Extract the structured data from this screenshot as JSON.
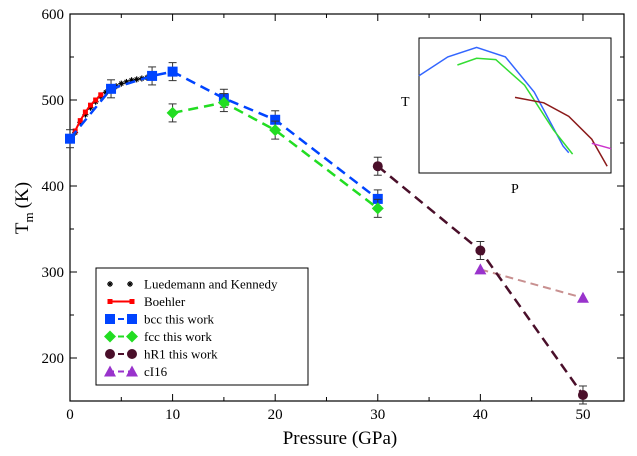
{
  "chart_data": {
    "type": "line",
    "xlabel": "Pressure (GPa)",
    "ylabel_main": "T",
    "ylabel_sub": "m",
    "ylabel_unit": "(K)",
    "xlim": [
      0,
      54
    ],
    "ylim": [
      150,
      600
    ],
    "xticks": [
      0,
      10,
      20,
      30,
      40,
      50
    ],
    "yticks": [
      200,
      300,
      400,
      500,
      600
    ],
    "grid": false,
    "legend_position": "bottom-left",
    "series": [
      {
        "name": "Luedemann and Kennedy",
        "color": "#000000",
        "marker": "star",
        "x": [
          0.5,
          1,
          1.5,
          2,
          2.5,
          3,
          3.5,
          4,
          4.5,
          5,
          5.5,
          6,
          6.5,
          7,
          7.5,
          8
        ],
        "y": [
          462,
          474,
          483,
          491,
          498,
          504,
          509,
          513,
          516,
          519,
          521,
          523,
          524,
          525,
          526,
          526
        ]
      },
      {
        "name": "Boehler",
        "color": "#ff0000",
        "marker": "square",
        "x": [
          0.5,
          1,
          1.5,
          2,
          2.5,
          3
        ],
        "y": [
          464,
          476,
          486,
          494,
          500,
          506
        ]
      },
      {
        "name": "bcc this work",
        "color": "#0044ff",
        "marker": "square",
        "x": [
          0,
          4,
          8,
          10,
          15,
          20,
          30
        ],
        "y": [
          455,
          513,
          528,
          533,
          502,
          477,
          385
        ]
      },
      {
        "name": "fcc this work",
        "color": "#22dd22",
        "marker": "diamond",
        "x": [
          10,
          15,
          20,
          30
        ],
        "y": [
          485,
          497,
          465,
          374
        ]
      },
      {
        "name": "hR1 this work",
        "color": "#4a0f2a",
        "marker": "circle",
        "x": [
          30,
          40,
          50
        ],
        "y": [
          423,
          325,
          157
        ]
      },
      {
        "name": "cI16",
        "color": "#9933cc",
        "marker": "triangle",
        "x": [
          40,
          50
        ],
        "y": [
          303,
          270
        ]
      }
    ],
    "inset": {
      "xlabel": "P",
      "ylabel": "T",
      "curves": [
        {
          "color": "#3366ff",
          "points": [
            [
              0.0,
              0.72
            ],
            [
              0.15,
              0.86
            ],
            [
              0.3,
              0.93
            ],
            [
              0.45,
              0.86
            ],
            [
              0.6,
              0.6
            ],
            [
              0.75,
              0.2
            ],
            [
              0.78,
              0.15
            ]
          ]
        },
        {
          "color": "#33dd33",
          "points": [
            [
              0.2,
              0.8
            ],
            [
              0.3,
              0.85
            ],
            [
              0.4,
              0.84
            ],
            [
              0.55,
              0.65
            ],
            [
              0.7,
              0.32
            ],
            [
              0.8,
              0.14
            ]
          ]
        },
        {
          "color": "#8b1a1a",
          "points": [
            [
              0.5,
              0.56
            ],
            [
              0.65,
              0.52
            ],
            [
              0.78,
              0.42
            ],
            [
              0.9,
              0.25
            ],
            [
              0.98,
              0.05
            ]
          ]
        },
        {
          "color": "#cc33cc",
          "points": [
            [
              0.9,
              0.22
            ],
            [
              1.0,
              0.18
            ]
          ]
        }
      ]
    }
  }
}
